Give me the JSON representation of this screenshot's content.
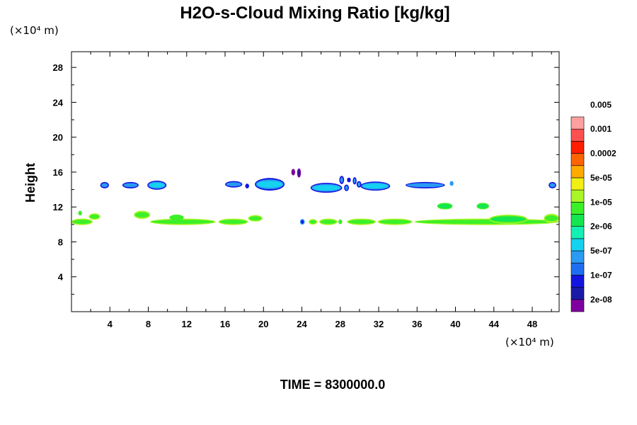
{
  "chart_data": {
    "type": "contour",
    "title": "H2O-s-Cloud Mixing Ratio [kg/kg]",
    "ylabel": "Height",
    "xlabel": "",
    "x_unit": "(×10⁴ m)",
    "y_unit": "(×10⁴ m)",
    "xlim": [
      0,
      50.8
    ],
    "ylim": [
      0,
      29.8
    ],
    "x_ticks": [
      4,
      8,
      12,
      16,
      20,
      24,
      28,
      32,
      36,
      40,
      44,
      48
    ],
    "y_ticks": [
      4,
      8,
      12,
      16,
      20,
      24,
      28
    ],
    "time_label": "TIME = 8300000.0",
    "colorbar": {
      "colors": [
        "#7f00a0",
        "#1a1aa8",
        "#1414e0",
        "#1e6ef0",
        "#2a9af2",
        "#14d2f0",
        "#14f0b4",
        "#14e650",
        "#3cf028",
        "#aaf528",
        "#f0f014",
        "#ffaa00",
        "#ff6400",
        "#ff1e00",
        "#ff5050",
        "#ffa0a0"
      ],
      "labels": [
        "2e-08",
        "1e-07",
        "5e-07",
        "2e-06",
        "1e-05",
        "5e-05",
        "0.0002",
        "0.001",
        "0.005"
      ]
    },
    "features": [
      {
        "x0": 0,
        "x1": 2.2,
        "y": 10.3,
        "h": 0.5,
        "colors": [
          "#aaf528",
          "#3cf028"
        ]
      },
      {
        "x0": 1.8,
        "x1": 3,
        "y": 10.9,
        "h": 0.5,
        "colors": [
          "#aaf528",
          "#3cf028"
        ]
      },
      {
        "x0": 0.7,
        "x1": 1.1,
        "y": 11.3,
        "h": 0.3,
        "colors": [
          "#3cf028"
        ]
      },
      {
        "x0": 6.5,
        "x1": 8.2,
        "y": 11.1,
        "h": 0.7,
        "colors": [
          "#aaf528",
          "#3cf028"
        ]
      },
      {
        "x0": 8.2,
        "x1": 15,
        "y": 10.3,
        "h": 0.5,
        "colors": [
          "#aaf528",
          "#3cf028"
        ]
      },
      {
        "x0": 10.2,
        "x1": 11.7,
        "y": 10.8,
        "h": 0.4,
        "colors": [
          "#3cf028"
        ]
      },
      {
        "x0": 15.3,
        "x1": 18.4,
        "y": 10.3,
        "h": 0.5,
        "colors": [
          "#aaf528",
          "#3cf028"
        ]
      },
      {
        "x0": 18.4,
        "x1": 19.9,
        "y": 10.7,
        "h": 0.5,
        "colors": [
          "#aaf528",
          "#3cf028"
        ]
      },
      {
        "x0": 23.8,
        "x1": 24.3,
        "y": 10.3,
        "h": 0.4,
        "colors": [
          "#2a9af2",
          "#1414e0"
        ]
      },
      {
        "x0": 24.7,
        "x1": 25.6,
        "y": 10.3,
        "h": 0.4,
        "colors": [
          "#aaf528",
          "#3cf028"
        ]
      },
      {
        "x0": 25.8,
        "x1": 27.7,
        "y": 10.3,
        "h": 0.5,
        "colors": [
          "#aaf528",
          "#3cf028"
        ]
      },
      {
        "x0": 27.8,
        "x1": 28.2,
        "y": 10.3,
        "h": 0.3,
        "colors": [
          "#3cf028"
        ]
      },
      {
        "x0": 28.7,
        "x1": 31.7,
        "y": 10.3,
        "h": 0.5,
        "colors": [
          "#aaf528",
          "#3cf028"
        ]
      },
      {
        "x0": 31.9,
        "x1": 35.5,
        "y": 10.3,
        "h": 0.5,
        "colors": [
          "#aaf528",
          "#3cf028"
        ]
      },
      {
        "x0": 35.7,
        "x1": 50.8,
        "y": 10.3,
        "h": 0.5,
        "colors": [
          "#aaf528",
          "#3cf028"
        ]
      },
      {
        "x0": 43.5,
        "x1": 47.5,
        "y": 10.6,
        "h": 0.8,
        "colors": [
          "#aaf528",
          "#3cf028",
          "#14e650"
        ]
      },
      {
        "x0": 49.2,
        "x1": 50.8,
        "y": 10.7,
        "h": 0.8,
        "colors": [
          "#aaf528",
          "#3cf028"
        ]
      },
      {
        "x0": 38.1,
        "x1": 39.7,
        "y": 12.1,
        "h": 0.5,
        "colors": [
          "#3cf028",
          "#14e650"
        ]
      },
      {
        "x0": 42.2,
        "x1": 43.5,
        "y": 12.1,
        "h": 0.5,
        "colors": [
          "#3cf028",
          "#14e650"
        ]
      },
      {
        "x0": 3,
        "x1": 3.9,
        "y": 14.5,
        "h": 0.5,
        "colors": [
          "#1414e0",
          "#2a9af2"
        ]
      },
      {
        "x0": 5.3,
        "x1": 7,
        "y": 14.5,
        "h": 0.5,
        "colors": [
          "#1414e0",
          "#2a9af2"
        ]
      },
      {
        "x0": 7.9,
        "x1": 9.9,
        "y": 14.5,
        "h": 0.8,
        "colors": [
          "#1414e0",
          "#2a9af2",
          "#14d2f0"
        ]
      },
      {
        "x0": 16,
        "x1": 17.8,
        "y": 14.6,
        "h": 0.5,
        "colors": [
          "#1414e0",
          "#2a9af2"
        ]
      },
      {
        "x0": 18.1,
        "x1": 18.5,
        "y": 14.4,
        "h": 0.3,
        "colors": [
          "#1414e0"
        ]
      },
      {
        "x0": 19.1,
        "x1": 22.2,
        "y": 14.6,
        "h": 1.2,
        "colors": [
          "#1414e0",
          "#2a9af2",
          "#14d2f0"
        ]
      },
      {
        "x0": 22.9,
        "x1": 23.3,
        "y": 16,
        "h": 0.5,
        "colors": [
          "#7f00a0"
        ]
      },
      {
        "x0": 23.5,
        "x1": 23.9,
        "y": 15.9,
        "h": 0.8,
        "colors": [
          "#7f00a0",
          "#1a1aa8"
        ]
      },
      {
        "x0": 24.9,
        "x1": 28.2,
        "y": 14.2,
        "h": 0.9,
        "colors": [
          "#1414e0",
          "#2a9af2",
          "#14d2f0"
        ]
      },
      {
        "x0": 27.9,
        "x1": 28.4,
        "y": 15.1,
        "h": 0.7,
        "colors": [
          "#1414e0",
          "#2a9af2"
        ]
      },
      {
        "x0": 28.4,
        "x1": 28.9,
        "y": 14.2,
        "h": 0.5,
        "colors": [
          "#1414e0",
          "#2a9af2"
        ]
      },
      {
        "x0": 28.7,
        "x1": 29.1,
        "y": 15.1,
        "h": 0.3,
        "colors": [
          "#1414e0"
        ]
      },
      {
        "x0": 29.3,
        "x1": 29.7,
        "y": 15,
        "h": 0.6,
        "colors": [
          "#1414e0",
          "#2a9af2"
        ]
      },
      {
        "x0": 29.7,
        "x1": 30.2,
        "y": 14.6,
        "h": 0.5,
        "colors": [
          "#1414e0",
          "#2a9af2"
        ]
      },
      {
        "x0": 30.1,
        "x1": 33.2,
        "y": 14.4,
        "h": 0.8,
        "colors": [
          "#1414e0",
          "#2a9af2",
          "#14d2f0"
        ]
      },
      {
        "x0": 34.8,
        "x1": 38.9,
        "y": 14.5,
        "h": 0.5,
        "colors": [
          "#1414e0",
          "#2a9af2"
        ]
      },
      {
        "x0": 39.4,
        "x1": 39.8,
        "y": 14.7,
        "h": 0.3,
        "colors": [
          "#2a9af2"
        ]
      },
      {
        "x0": 49.7,
        "x1": 50.5,
        "y": 14.5,
        "h": 0.5,
        "colors": [
          "#1414e0",
          "#2a9af2"
        ]
      }
    ]
  }
}
